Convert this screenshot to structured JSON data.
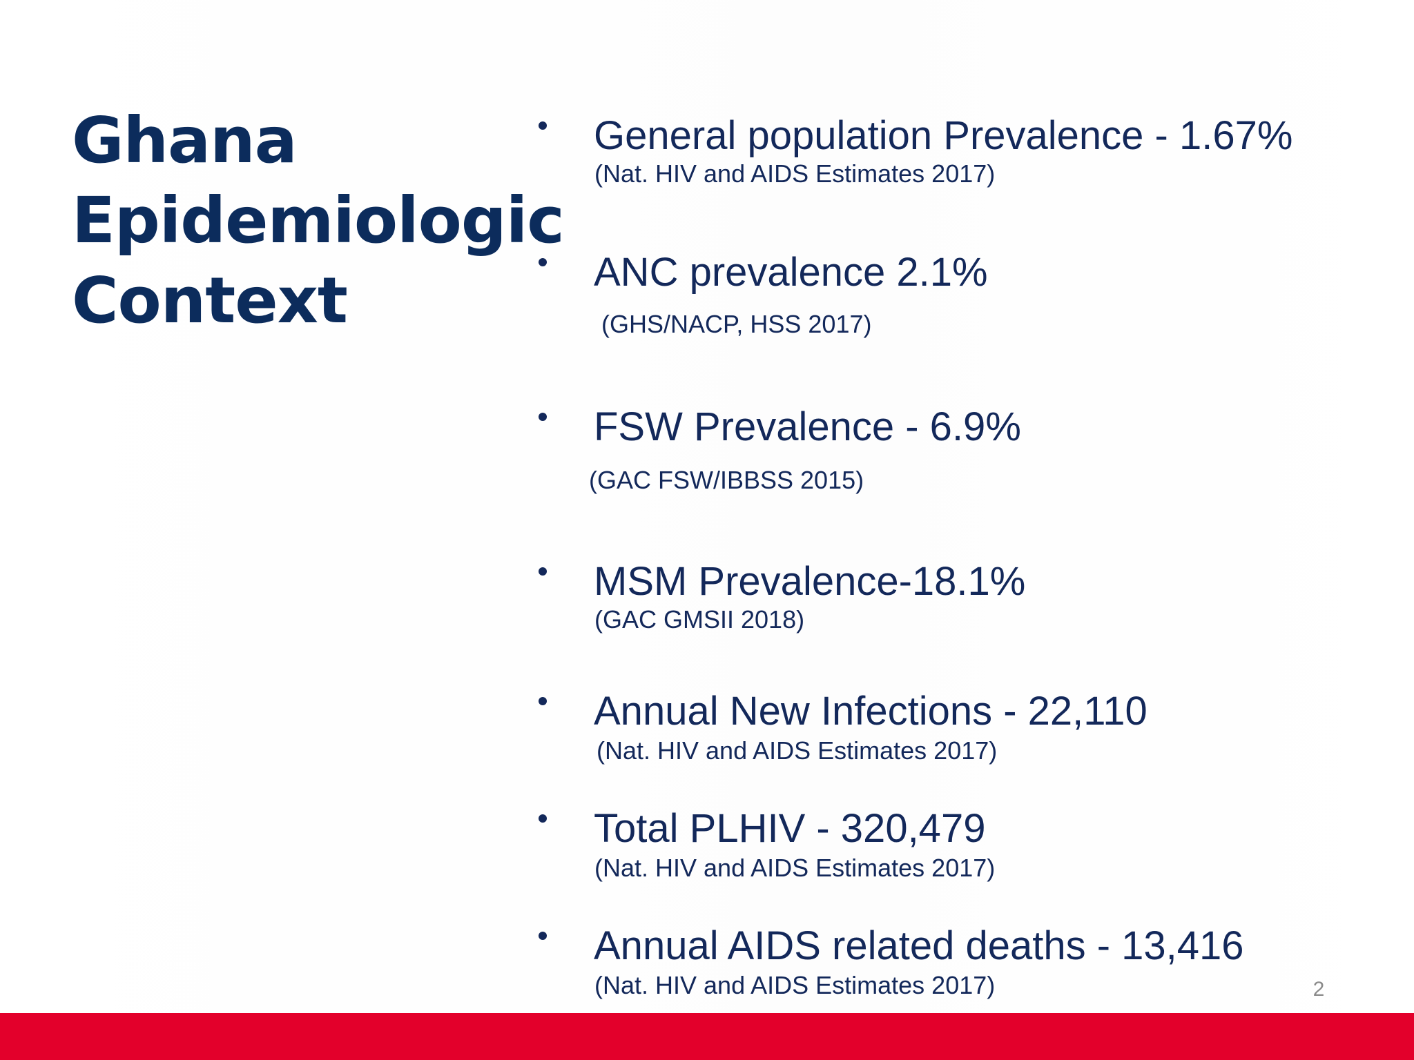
{
  "slide": {
    "title_lines": [
      "Ghana",
      "Epidemiologic",
      "Context"
    ],
    "bullets": [
      {
        "text": "General population Prevalence - 1.67%",
        "source": "(Nat. HIV and AIDS Estimates 2017)"
      },
      {
        "text": "ANC prevalence 2.1%",
        "source": "(GHS/NACP, HSS 2017)"
      },
      {
        "text": "FSW Prevalence - 6.9%",
        "source": "(GAC FSW/IBBSS 2015)"
      },
      {
        "text": "MSM Prevalence-18.1%",
        "source": "(GAC GMSII 2018)"
      },
      {
        "text": "Annual New Infections - 22,110",
        "source": "(Nat. HIV and AIDS Estimates 2017)"
      },
      {
        "text": "Total PLHIV - 320,479",
        "source": "(Nat. HIV and AIDS Estimates 2017)"
      },
      {
        "text": "Annual AIDS related deaths - 13,416",
        "source": "(Nat. HIV and AIDS Estimates 2017)"
      }
    ],
    "page_number": "2"
  },
  "colors": {
    "title": "#0c2c5c",
    "body_text": "#13285a",
    "footer_bar": "#e3002b",
    "page_number": "#8a8a8a"
  }
}
